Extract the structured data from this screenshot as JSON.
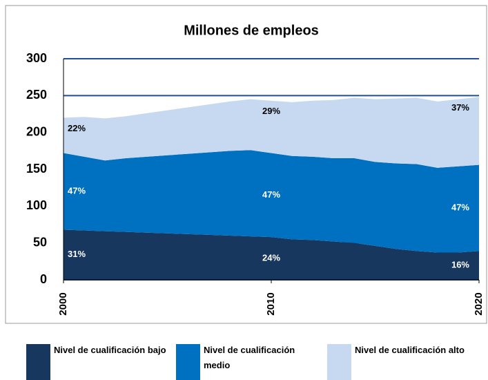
{
  "chart_data": {
    "type": "stacked-area",
    "title": "Millones de empleos",
    "x": [
      2000,
      2001,
      2002,
      2003,
      2004,
      2005,
      2006,
      2007,
      2008,
      2009,
      2010,
      2011,
      2012,
      2013,
      2014,
      2015,
      2016,
      2017,
      2018,
      2019,
      2020
    ],
    "xlim": [
      2000,
      2020
    ],
    "xticks": [
      2000,
      2010,
      2020
    ],
    "ylim": [
      0,
      300
    ],
    "yticks": [
      0,
      50,
      100,
      150,
      200,
      250,
      300
    ],
    "grid": true,
    "series": [
      {
        "name": "Nivel de cualificación bajo",
        "color": "#17375e",
        "values": [
          68,
          67,
          66,
          65,
          64,
          63,
          62,
          61,
          60,
          59,
          58,
          55,
          54,
          52,
          50,
          46,
          42,
          39,
          37,
          37,
          39
        ],
        "annotations": [
          {
            "x": 2000,
            "text": "31%"
          },
          {
            "x": 2010,
            "text": "24%"
          },
          {
            "x": 2020,
            "text": "16%"
          }
        ]
      },
      {
        "name": "Nivel de cualificación medio",
        "color": "#0070c0",
        "values": [
          104,
          100,
          96,
          100,
          103,
          106,
          109,
          112,
          115,
          117,
          114,
          113,
          113,
          113,
          115,
          114,
          116,
          118,
          115,
          117,
          117
        ],
        "annotations": [
          {
            "x": 2000,
            "text": "47%"
          },
          {
            "x": 2010,
            "text": "47%"
          },
          {
            "x": 2020,
            "text": "47%"
          }
        ]
      },
      {
        "name": "Nivel de cualificación alto",
        "color": "#c6d9f1",
        "values": [
          48,
          54,
          57,
          57,
          59,
          61,
          63,
          65,
          67,
          69,
          71,
          73,
          76,
          79,
          82,
          85,
          88,
          90,
          90,
          91,
          92
        ],
        "annotations": [
          {
            "x": 2000,
            "text": "22%"
          },
          {
            "x": 2010,
            "text": "29%"
          },
          {
            "x": 2020,
            "text": "37%"
          }
        ]
      }
    ]
  }
}
